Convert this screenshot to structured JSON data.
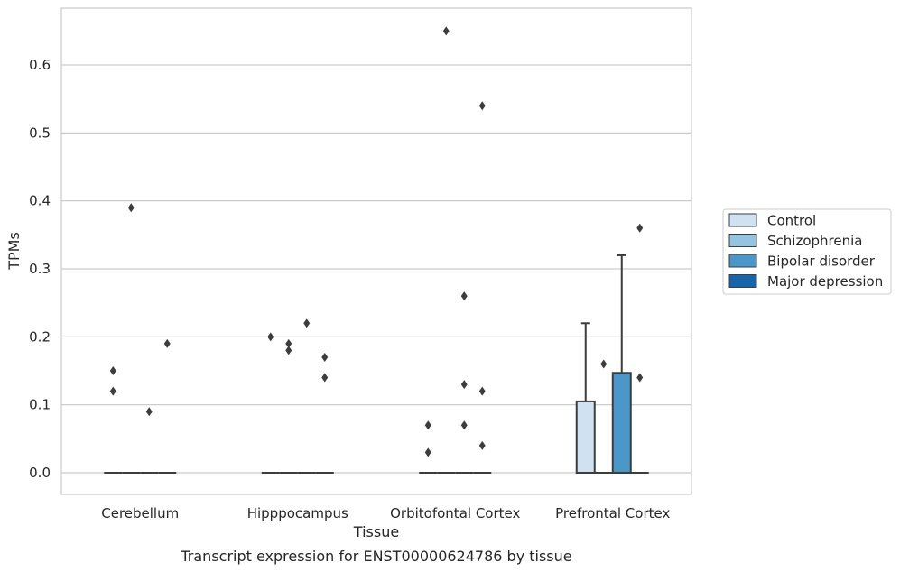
{
  "chart_data": {
    "type": "boxplot",
    "xlabel": "Tissue",
    "ylabel": "TPMs",
    "caption": "Transcript expression for ENST00000624786 by tissue",
    "ylim": [
      -0.032,
      0.685
    ],
    "yticks": [
      0.0,
      0.1,
      0.2,
      0.3,
      0.4,
      0.5,
      0.6
    ],
    "ytick_labels": [
      "0.0",
      "0.1",
      "0.2",
      "0.3",
      "0.4",
      "0.5",
      "0.6"
    ],
    "grid": "horizontal",
    "legend_position": "right",
    "categories": [
      "Cerebellum",
      "Hipppocampus",
      "Orbitofontal Cortex",
      "Prefrontal Cortex"
    ],
    "series": [
      {
        "name": "Control",
        "color": "#d0e1f2",
        "boxes": [
          {
            "q1": 0.0,
            "median": 0.0,
            "q3": 0.0,
            "whisker_low": 0.0,
            "whisker_high": 0.0,
            "outliers": [
              0.15,
              0.12
            ]
          },
          {
            "q1": 0.0,
            "median": 0.0,
            "q3": 0.0,
            "whisker_low": 0.0,
            "whisker_high": 0.0,
            "outliers": [
              0.2
            ]
          },
          {
            "q1": 0.0,
            "median": 0.0,
            "q3": 0.0,
            "whisker_low": 0.0,
            "whisker_high": 0.0,
            "outliers": [
              0.07,
              0.03
            ]
          },
          {
            "q1": 0.0,
            "median": 0.0,
            "q3": 0.105,
            "whisker_low": 0.0,
            "whisker_high": 0.22,
            "outliers": []
          }
        ]
      },
      {
        "name": "Schizophrenia",
        "color": "#94c4df",
        "boxes": [
          {
            "q1": 0.0,
            "median": 0.0,
            "q3": 0.0,
            "whisker_low": 0.0,
            "whisker_high": 0.0,
            "outliers": [
              0.39
            ]
          },
          {
            "q1": 0.0,
            "median": 0.0,
            "q3": 0.0,
            "whisker_low": 0.0,
            "whisker_high": 0.0,
            "outliers": [
              0.19,
              0.18
            ]
          },
          {
            "q1": 0.0,
            "median": 0.0,
            "q3": 0.0,
            "whisker_low": 0.0,
            "whisker_high": 0.0,
            "outliers": [
              0.65
            ]
          },
          {
            "q1": 0.0,
            "median": 0.0,
            "q3": 0.0,
            "whisker_low": 0.0,
            "whisker_high": 0.0,
            "outliers": [
              0.16
            ]
          }
        ]
      },
      {
        "name": "Bipolar disorder",
        "color": "#4a98c9",
        "boxes": [
          {
            "q1": 0.0,
            "median": 0.0,
            "q3": 0.0,
            "whisker_low": 0.0,
            "whisker_high": 0.0,
            "outliers": [
              0.09
            ]
          },
          {
            "q1": 0.0,
            "median": 0.0,
            "q3": 0.0,
            "whisker_low": 0.0,
            "whisker_high": 0.0,
            "outliers": [
              0.22
            ]
          },
          {
            "q1": 0.0,
            "median": 0.0,
            "q3": 0.0,
            "whisker_low": 0.0,
            "whisker_high": 0.0,
            "outliers": [
              0.26,
              0.13,
              0.07
            ]
          },
          {
            "q1": 0.0,
            "median": 0.0,
            "q3": 0.147,
            "whisker_low": 0.0,
            "whisker_high": 0.32,
            "outliers": []
          }
        ]
      },
      {
        "name": "Major depression",
        "color": "#1764ab",
        "boxes": [
          {
            "q1": 0.0,
            "median": 0.0,
            "q3": 0.0,
            "whisker_low": 0.0,
            "whisker_high": 0.0,
            "outliers": [
              0.19
            ]
          },
          {
            "q1": 0.0,
            "median": 0.0,
            "q3": 0.0,
            "whisker_low": 0.0,
            "whisker_high": 0.0,
            "outliers": [
              0.17,
              0.14
            ]
          },
          {
            "q1": 0.0,
            "median": 0.0,
            "q3": 0.0,
            "whisker_low": 0.0,
            "whisker_high": 0.0,
            "outliers": [
              0.54,
              0.12,
              0.04
            ]
          },
          {
            "q1": 0.0,
            "median": 0.0,
            "q3": 0.0,
            "whisker_low": 0.0,
            "whisker_high": 0.0,
            "outliers": [
              0.36,
              0.14
            ]
          }
        ]
      }
    ],
    "colors": {
      "grid": "#cccccc",
      "frame": "#cccccc",
      "marks": "#3d3d3d"
    }
  }
}
